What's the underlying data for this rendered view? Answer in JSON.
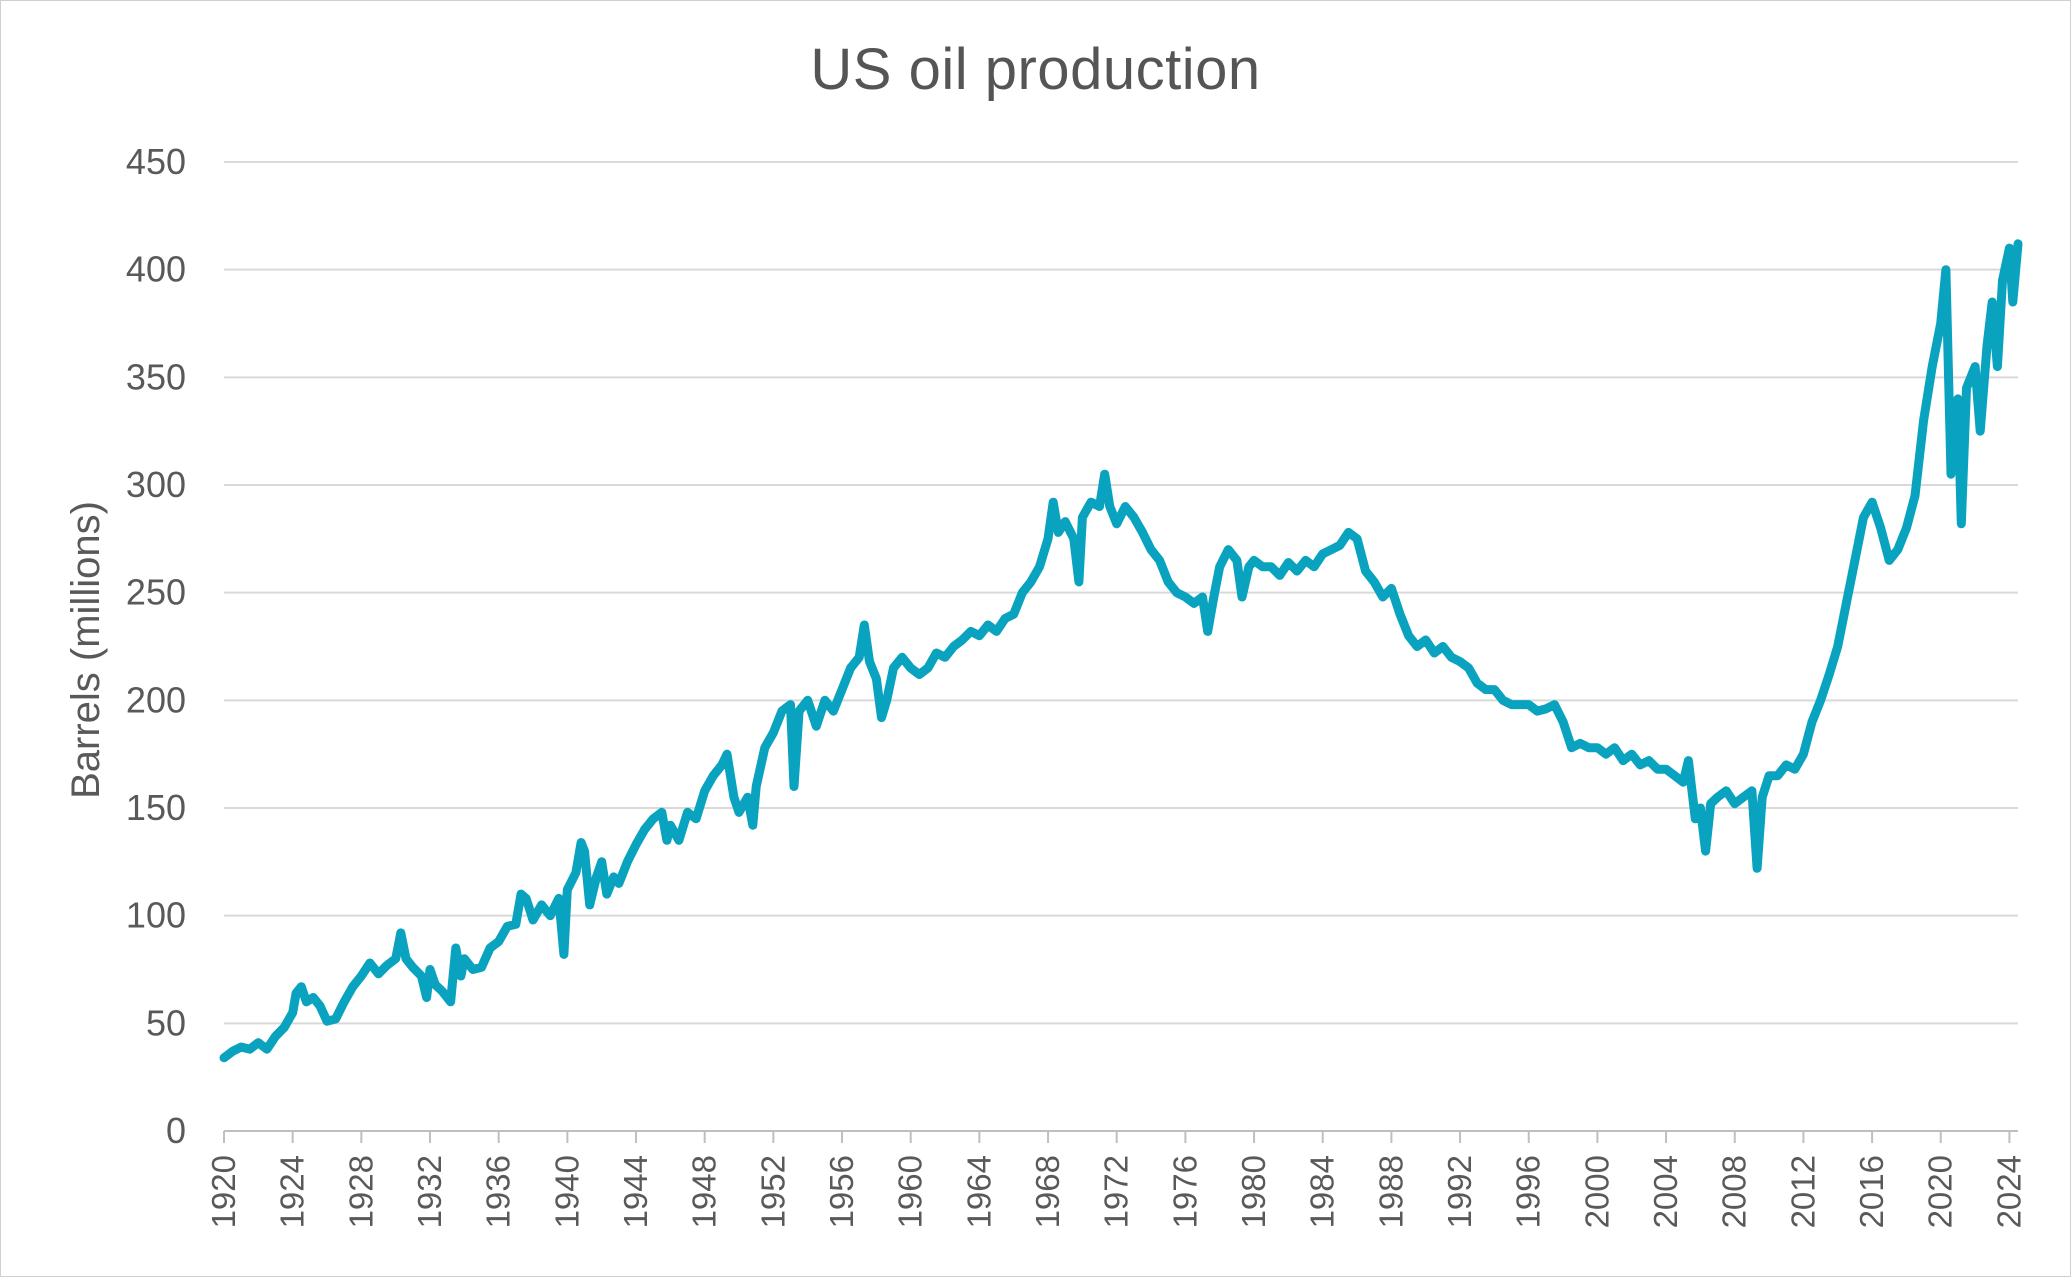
{
  "chart_data": {
    "type": "line",
    "title": "US oil production",
    "xlabel": "",
    "ylabel": "Barrels (millions)",
    "xlim": [
      1920,
      2024.5
    ],
    "ylim": [
      0,
      450
    ],
    "y_ticks": [
      0,
      50,
      100,
      150,
      200,
      250,
      300,
      350,
      400,
      450
    ],
    "x_ticks": [
      1920,
      1924,
      1928,
      1932,
      1936,
      1940,
      1944,
      1948,
      1952,
      1956,
      1960,
      1964,
      1968,
      1972,
      1976,
      1980,
      1984,
      1988,
      1992,
      1996,
      2000,
      2004,
      2008,
      2012,
      2016,
      2020,
      2024
    ],
    "grid": "horizontal",
    "legend": "none",
    "series_color": "#0aa3bf",
    "series": [
      {
        "points": [
          [
            1920.0,
            34
          ],
          [
            1920.5,
            37
          ],
          [
            1921.0,
            39
          ],
          [
            1921.5,
            38
          ],
          [
            1922.0,
            41
          ],
          [
            1922.5,
            38
          ],
          [
            1923.0,
            44
          ],
          [
            1923.5,
            48
          ],
          [
            1924.0,
            55
          ],
          [
            1924.2,
            64
          ],
          [
            1924.5,
            67
          ],
          [
            1924.8,
            60
          ],
          [
            1925.2,
            62
          ],
          [
            1925.6,
            58
          ],
          [
            1926.0,
            51
          ],
          [
            1926.5,
            52
          ],
          [
            1927.0,
            60
          ],
          [
            1927.5,
            67
          ],
          [
            1928.0,
            72
          ],
          [
            1928.5,
            78
          ],
          [
            1929.0,
            73
          ],
          [
            1929.5,
            77
          ],
          [
            1930.0,
            80
          ],
          [
            1930.3,
            92
          ],
          [
            1930.6,
            80
          ],
          [
            1931.0,
            76
          ],
          [
            1931.5,
            72
          ],
          [
            1931.8,
            62
          ],
          [
            1932.0,
            75
          ],
          [
            1932.3,
            68
          ],
          [
            1932.7,
            65
          ],
          [
            1933.2,
            60
          ],
          [
            1933.5,
            85
          ],
          [
            1933.8,
            72
          ],
          [
            1934.0,
            80
          ],
          [
            1934.5,
            75
          ],
          [
            1935.0,
            76
          ],
          [
            1935.5,
            85
          ],
          [
            1936.0,
            88
          ],
          [
            1936.5,
            95
          ],
          [
            1937.0,
            96
          ],
          [
            1937.3,
            110
          ],
          [
            1937.6,
            108
          ],
          [
            1938.0,
            98
          ],
          [
            1938.5,
            105
          ],
          [
            1939.0,
            100
          ],
          [
            1939.5,
            108
          ],
          [
            1939.8,
            82
          ],
          [
            1940.0,
            112
          ],
          [
            1940.5,
            120
          ],
          [
            1940.8,
            134
          ],
          [
            1941.0,
            130
          ],
          [
            1941.3,
            105
          ],
          [
            1941.7,
            118
          ],
          [
            1942.0,
            125
          ],
          [
            1942.3,
            110
          ],
          [
            1942.7,
            118
          ],
          [
            1943.0,
            115
          ],
          [
            1943.5,
            125
          ],
          [
            1944.0,
            133
          ],
          [
            1944.5,
            140
          ],
          [
            1945.0,
            145
          ],
          [
            1945.5,
            148
          ],
          [
            1945.8,
            135
          ],
          [
            1946.0,
            142
          ],
          [
            1946.5,
            135
          ],
          [
            1947.0,
            148
          ],
          [
            1947.5,
            145
          ],
          [
            1948.0,
            158
          ],
          [
            1948.5,
            165
          ],
          [
            1949.0,
            170
          ],
          [
            1949.3,
            175
          ],
          [
            1949.7,
            155
          ],
          [
            1950.0,
            148
          ],
          [
            1950.5,
            155
          ],
          [
            1950.8,
            142
          ],
          [
            1951.0,
            160
          ],
          [
            1951.5,
            178
          ],
          [
            1952.0,
            185
          ],
          [
            1952.5,
            195
          ],
          [
            1953.0,
            198
          ],
          [
            1953.2,
            160
          ],
          [
            1953.5,
            195
          ],
          [
            1954.0,
            200
          ],
          [
            1954.5,
            188
          ],
          [
            1955.0,
            200
          ],
          [
            1955.5,
            195
          ],
          [
            1956.0,
            205
          ],
          [
            1956.5,
            215
          ],
          [
            1957.0,
            220
          ],
          [
            1957.3,
            235
          ],
          [
            1957.6,
            218
          ],
          [
            1958.0,
            210
          ],
          [
            1958.3,
            192
          ],
          [
            1958.6,
            200
          ],
          [
            1959.0,
            215
          ],
          [
            1959.5,
            220
          ],
          [
            1960.0,
            215
          ],
          [
            1960.5,
            212
          ],
          [
            1961.0,
            215
          ],
          [
            1961.5,
            222
          ],
          [
            1962.0,
            220
          ],
          [
            1962.5,
            225
          ],
          [
            1963.0,
            228
          ],
          [
            1963.5,
            232
          ],
          [
            1964.0,
            230
          ],
          [
            1964.5,
            235
          ],
          [
            1965.0,
            232
          ],
          [
            1965.5,
            238
          ],
          [
            1966.0,
            240
          ],
          [
            1966.5,
            250
          ],
          [
            1967.0,
            255
          ],
          [
            1967.5,
            262
          ],
          [
            1968.0,
            275
          ],
          [
            1968.3,
            292
          ],
          [
            1968.6,
            278
          ],
          [
            1969.0,
            283
          ],
          [
            1969.5,
            275
          ],
          [
            1969.8,
            255
          ],
          [
            1970.0,
            285
          ],
          [
            1970.5,
            292
          ],
          [
            1971.0,
            290
          ],
          [
            1971.3,
            305
          ],
          [
            1971.6,
            290
          ],
          [
            1972.0,
            282
          ],
          [
            1972.5,
            290
          ],
          [
            1973.0,
            285
          ],
          [
            1973.5,
            278
          ],
          [
            1974.0,
            270
          ],
          [
            1974.5,
            265
          ],
          [
            1975.0,
            255
          ],
          [
            1975.5,
            250
          ],
          [
            1976.0,
            248
          ],
          [
            1976.5,
            245
          ],
          [
            1977.0,
            248
          ],
          [
            1977.3,
            232
          ],
          [
            1977.7,
            250
          ],
          [
            1978.0,
            262
          ],
          [
            1978.5,
            270
          ],
          [
            1979.0,
            265
          ],
          [
            1979.3,
            248
          ],
          [
            1979.7,
            262
          ],
          [
            1980.0,
            265
          ],
          [
            1980.5,
            262
          ],
          [
            1981.0,
            262
          ],
          [
            1981.5,
            258
          ],
          [
            1982.0,
            264
          ],
          [
            1982.5,
            260
          ],
          [
            1983.0,
            265
          ],
          [
            1983.5,
            262
          ],
          [
            1984.0,
            268
          ],
          [
            1984.5,
            270
          ],
          [
            1985.0,
            272
          ],
          [
            1985.5,
            278
          ],
          [
            1986.0,
            275
          ],
          [
            1986.5,
            260
          ],
          [
            1987.0,
            255
          ],
          [
            1987.5,
            248
          ],
          [
            1988.0,
            252
          ],
          [
            1988.5,
            240
          ],
          [
            1989.0,
            230
          ],
          [
            1989.5,
            225
          ],
          [
            1990.0,
            228
          ],
          [
            1990.5,
            222
          ],
          [
            1991.0,
            225
          ],
          [
            1991.5,
            220
          ],
          [
            1992.0,
            218
          ],
          [
            1992.5,
            215
          ],
          [
            1993.0,
            208
          ],
          [
            1993.5,
            205
          ],
          [
            1994.0,
            205
          ],
          [
            1994.5,
            200
          ],
          [
            1995.0,
            198
          ],
          [
            1995.5,
            198
          ],
          [
            1996.0,
            198
          ],
          [
            1996.5,
            195
          ],
          [
            1997.0,
            196
          ],
          [
            1997.5,
            198
          ],
          [
            1998.0,
            190
          ],
          [
            1998.5,
            178
          ],
          [
            1999.0,
            180
          ],
          [
            1999.5,
            178
          ],
          [
            2000.0,
            178
          ],
          [
            2000.5,
            175
          ],
          [
            2001.0,
            178
          ],
          [
            2001.5,
            172
          ],
          [
            2002.0,
            175
          ],
          [
            2002.5,
            170
          ],
          [
            2003.0,
            172
          ],
          [
            2003.5,
            168
          ],
          [
            2004.0,
            168
          ],
          [
            2004.5,
            165
          ],
          [
            2005.0,
            162
          ],
          [
            2005.3,
            172
          ],
          [
            2005.7,
            145
          ],
          [
            2006.0,
            150
          ],
          [
            2006.3,
            130
          ],
          [
            2006.6,
            152
          ],
          [
            2007.0,
            155
          ],
          [
            2007.5,
            158
          ],
          [
            2008.0,
            152
          ],
          [
            2008.5,
            155
          ],
          [
            2009.0,
            158
          ],
          [
            2009.3,
            122
          ],
          [
            2009.6,
            155
          ],
          [
            2010.0,
            165
          ],
          [
            2010.5,
            165
          ],
          [
            2011.0,
            170
          ],
          [
            2011.5,
            168
          ],
          [
            2012.0,
            175
          ],
          [
            2012.5,
            190
          ],
          [
            2013.0,
            200
          ],
          [
            2013.5,
            212
          ],
          [
            2014.0,
            225
          ],
          [
            2014.5,
            245
          ],
          [
            2015.0,
            265
          ],
          [
            2015.5,
            285
          ],
          [
            2016.0,
            292
          ],
          [
            2016.5,
            280
          ],
          [
            2017.0,
            265
          ],
          [
            2017.5,
            270
          ],
          [
            2018.0,
            280
          ],
          [
            2018.5,
            295
          ],
          [
            2019.0,
            330
          ],
          [
            2019.5,
            355
          ],
          [
            2020.0,
            375
          ],
          [
            2020.3,
            400
          ],
          [
            2020.6,
            305
          ],
          [
            2021.0,
            340
          ],
          [
            2021.2,
            282
          ],
          [
            2021.5,
            345
          ],
          [
            2022.0,
            355
          ],
          [
            2022.3,
            325
          ],
          [
            2022.7,
            365
          ],
          [
            2023.0,
            385
          ],
          [
            2023.3,
            355
          ],
          [
            2023.6,
            395
          ],
          [
            2024.0,
            410
          ],
          [
            2024.2,
            385
          ],
          [
            2024.5,
            412
          ]
        ]
      }
    ]
  }
}
